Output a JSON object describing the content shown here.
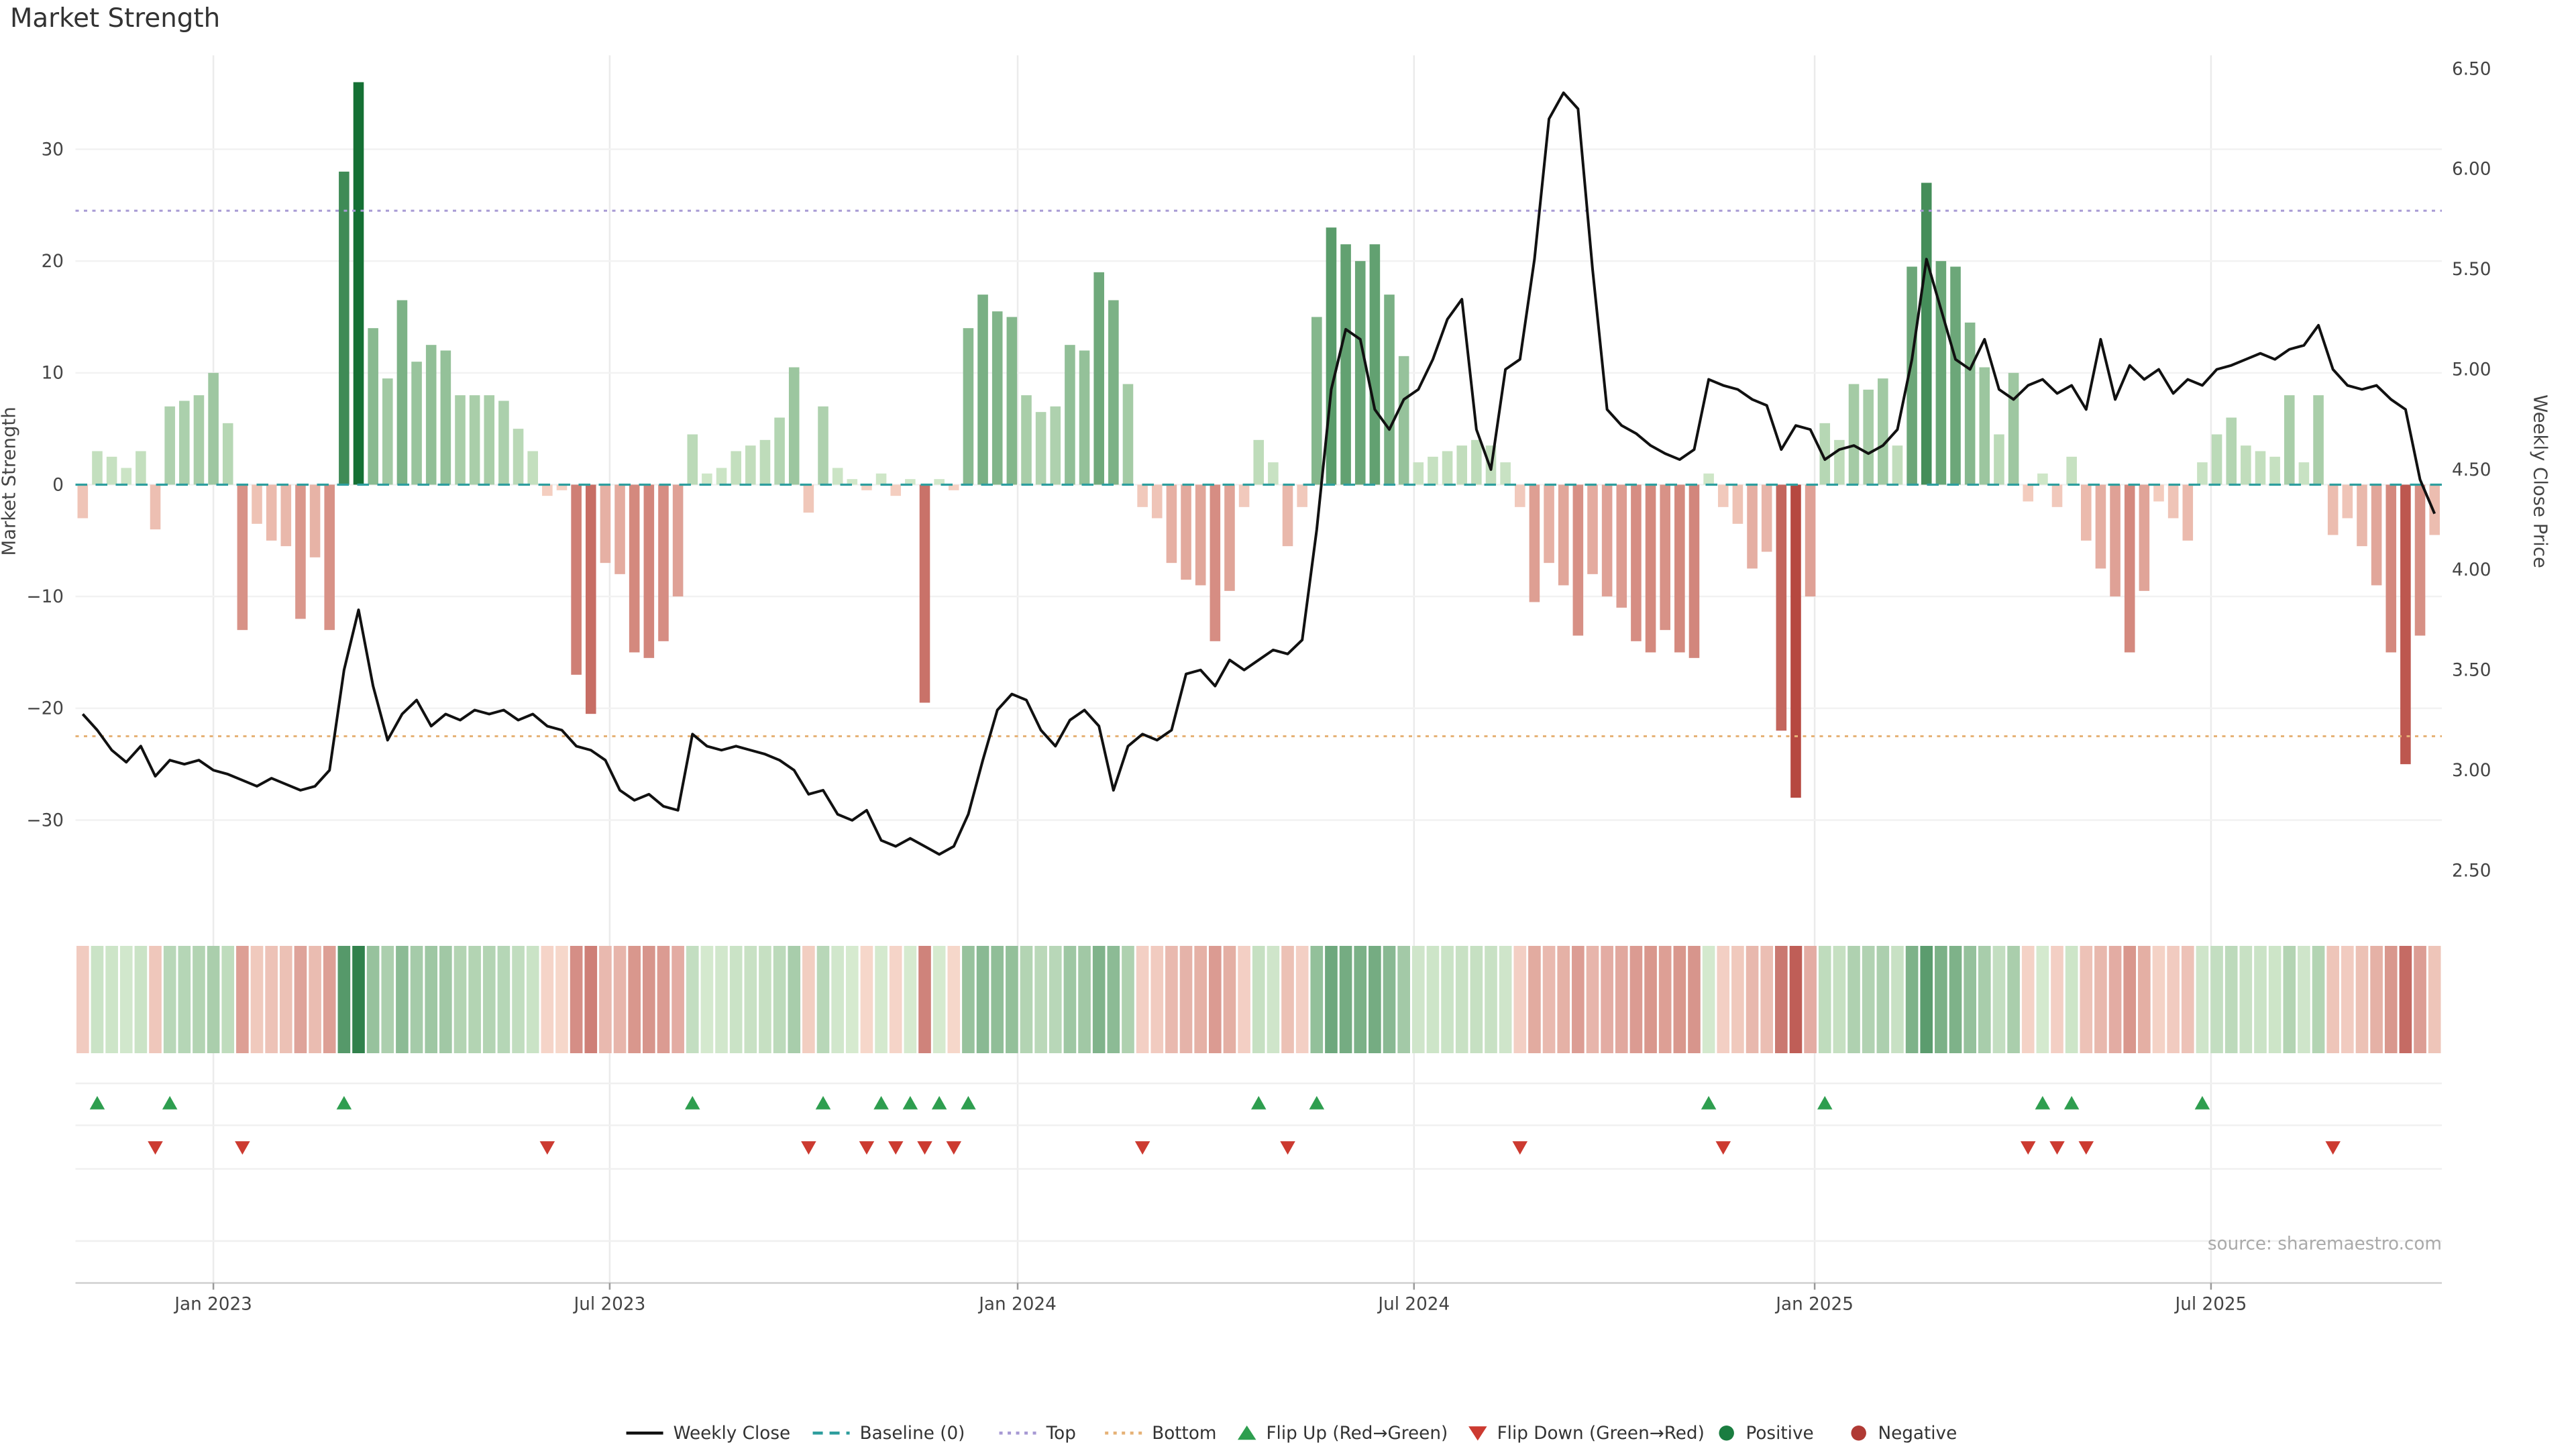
{
  "chart_data": {
    "type": "bar+line",
    "title": "Market Strength",
    "source": "source: sharemaestro.com",
    "left_axis": {
      "label": "Market Strength",
      "ticks": [
        30,
        20,
        10,
        0,
        -10,
        -20,
        -30
      ]
    },
    "right_axis": {
      "label": "Weekly Close Price",
      "ticks": [
        6.5,
        6.0,
        5.5,
        5.0,
        4.5,
        4.0,
        3.5,
        3.0,
        2.5
      ]
    },
    "x_ticks": [
      {
        "label": "Jan 2023",
        "week": 9
      },
      {
        "label": "Jul 2023",
        "week": 36.3
      },
      {
        "label": "Jan 2024",
        "week": 64.4
      },
      {
        "label": "Jul 2024",
        "week": 91.7
      },
      {
        "label": "Jan 2025",
        "week": 119.3
      },
      {
        "label": "Jul 2025",
        "week": 146.6
      }
    ],
    "reference_lines": {
      "baseline": 0,
      "top": 24.5,
      "bottom": -22.5
    },
    "series": [
      {
        "name": "Market Strength (weekly bars)",
        "type": "bar",
        "values": [
          -3,
          3,
          2.5,
          1.5,
          3,
          -4,
          7,
          7.5,
          8,
          10,
          5.5,
          -13,
          -3.5,
          -5,
          -5.5,
          -12,
          -6.5,
          -13,
          28,
          36,
          14,
          9.5,
          16.5,
          11,
          12.5,
          12,
          8,
          8,
          8,
          7.5,
          5,
          3,
          -1,
          -0.5,
          -17,
          -20.5,
          -7,
          -8,
          -15,
          -15.5,
          -14,
          -10,
          4.5,
          1,
          1.5,
          3,
          3.5,
          4,
          6,
          10.5,
          -2.5,
          7,
          1.5,
          0.5,
          -0.5,
          1,
          -1,
          0.5,
          -19.5,
          0.5,
          -0.5,
          14,
          17,
          15.5,
          15,
          8,
          6.5,
          7,
          12.5,
          12,
          19,
          16.5,
          9,
          -2,
          -3,
          -7,
          -8.5,
          -9,
          -14,
          -9.5,
          -2,
          4,
          2,
          -5.5,
          -2,
          15,
          23,
          21.5,
          20,
          21.5,
          17,
          11.5,
          2,
          2.5,
          3,
          3.5,
          4,
          3.5,
          2,
          -2,
          -10.5,
          -7,
          -9,
          -13.5,
          -8,
          -10,
          -11,
          -14,
          -15,
          -13,
          -15,
          -15.5,
          1,
          -2,
          -3.5,
          -7.5,
          -6,
          -22,
          -28,
          -10,
          5.5,
          4,
          9,
          8.5,
          9.5,
          3.5,
          19.5,
          27,
          20,
          19.5,
          14.5,
          10.5,
          4.5,
          10,
          -1.5,
          1,
          -2,
          2.5,
          -5,
          -7.5,
          -10,
          -15,
          -9.5,
          -1.5,
          -3,
          -5,
          2,
          4.5,
          6,
          3.5,
          3,
          2.5,
          8,
          2,
          8,
          -4.5,
          -3,
          -5.5,
          -9,
          -15,
          -25,
          -13.5,
          -4.5
        ]
      },
      {
        "name": "Weekly Close",
        "type": "line",
        "values": [
          3.28,
          3.2,
          3.1,
          3.04,
          3.12,
          2.97,
          3.05,
          3.03,
          3.05,
          3.0,
          2.98,
          2.95,
          2.92,
          2.96,
          2.93,
          2.9,
          2.92,
          3.0,
          3.5,
          3.8,
          3.42,
          3.15,
          3.28,
          3.35,
          3.22,
          3.28,
          3.25,
          3.3,
          3.28,
          3.3,
          3.25,
          3.28,
          3.22,
          3.2,
          3.12,
          3.1,
          3.05,
          2.9,
          2.85,
          2.88,
          2.82,
          2.8,
          3.18,
          3.12,
          3.1,
          3.12,
          3.1,
          3.08,
          3.05,
          3.0,
          2.88,
          2.9,
          2.78,
          2.75,
          2.8,
          2.65,
          2.62,
          2.66,
          2.62,
          2.58,
          2.62,
          2.78,
          3.05,
          3.3,
          3.38,
          3.35,
          3.2,
          3.12,
          3.25,
          3.3,
          3.22,
          2.9,
          3.12,
          3.18,
          3.15,
          3.2,
          3.48,
          3.5,
          3.42,
          3.55,
          3.5,
          3.55,
          3.6,
          3.58,
          3.65,
          4.2,
          4.9,
          5.2,
          5.15,
          4.8,
          4.7,
          4.85,
          4.9,
          5.05,
          5.25,
          5.35,
          4.7,
          4.5,
          5.0,
          5.05,
          5.55,
          6.25,
          6.38,
          6.3,
          5.5,
          4.8,
          4.72,
          4.68,
          4.62,
          4.58,
          4.55,
          4.6,
          4.95,
          4.92,
          4.9,
          4.85,
          4.82,
          4.6,
          4.72,
          4.7,
          4.55,
          4.6,
          4.62,
          4.58,
          4.62,
          4.7,
          5.05,
          5.55,
          5.3,
          5.05,
          5.0,
          5.15,
          4.9,
          4.85,
          4.92,
          4.95,
          4.88,
          4.92,
          4.8,
          5.15,
          4.85,
          5.02,
          4.95,
          5.0,
          4.88,
          4.95,
          4.92,
          5.0,
          5.02,
          5.05,
          5.08,
          5.05,
          5.1,
          5.12,
          5.22,
          5.0,
          4.92,
          4.9,
          4.92,
          4.85,
          4.8,
          4.45,
          4.28
        ]
      }
    ],
    "legend": [
      {
        "label": "Weekly Close",
        "swatch": "line",
        "color": "#111111"
      },
      {
        "label": "Baseline (0)",
        "swatch": "dashed",
        "color": "#2e9e9e"
      },
      {
        "label": "Top",
        "swatch": "dotted",
        "color": "#a79ad4"
      },
      {
        "label": "Bottom",
        "swatch": "dotted",
        "color": "#e6b277"
      },
      {
        "label": "Flip Up (Red→Green)",
        "swatch": "triangle-up",
        "color": "#2e9e4f"
      },
      {
        "label": "Flip Down (Green→Red)",
        "swatch": "triangle-down",
        "color": "#cc3a30"
      },
      {
        "label": "Positive",
        "swatch": "circle",
        "color": "#1a7d40"
      },
      {
        "label": "Negative",
        "swatch": "circle",
        "color": "#b03a34"
      }
    ],
    "colors": {
      "line": "#111111",
      "baseline": "#2e9e9e",
      "top": "#a79ad4",
      "bottom": "#e6b277",
      "positive_light": "#d3e9cb",
      "positive_dark": "#157034",
      "negative_light": "#f6d3c5",
      "negative_dark": "#b13e37",
      "flip_up": "#2e9e4f",
      "flip_down": "#cc3a30",
      "grid_v": "#ebebeb",
      "grid_h": "#f2f2f2",
      "axis_line": "#cfcfcf"
    }
  }
}
